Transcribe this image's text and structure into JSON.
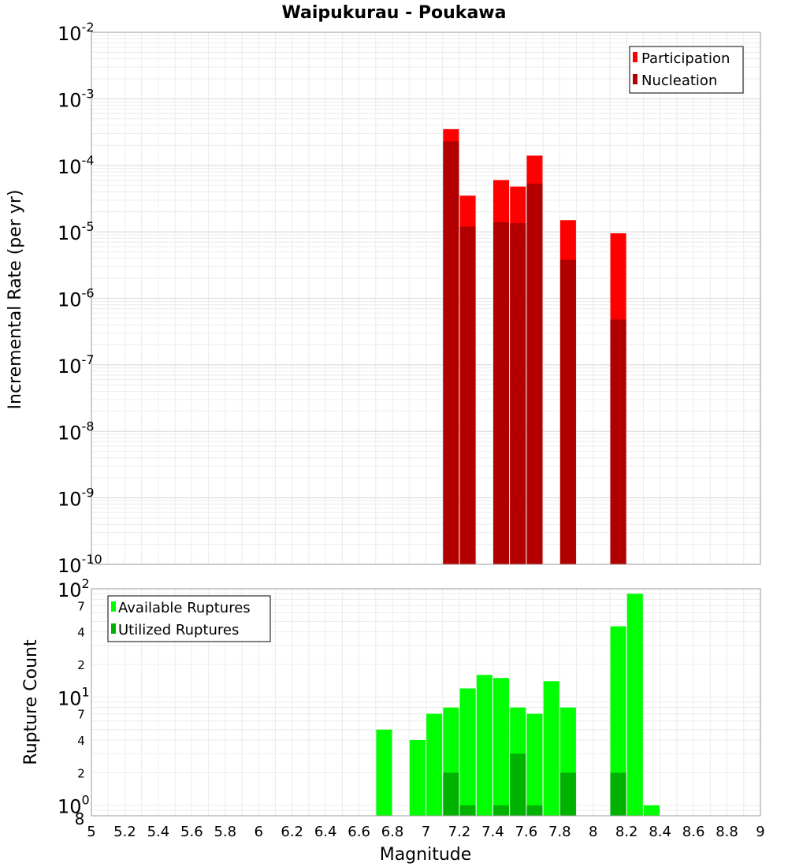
{
  "chart_data": [
    {
      "type": "bar",
      "title": "Waipukurau - Poukawa",
      "ylabel": "Incremental Rate (per yr)",
      "yscale": "log",
      "ylim": [
        1e-10,
        0.01
      ],
      "xlim": [
        5,
        9
      ],
      "legend_position": "top-right",
      "y_ticks": [
        {
          "base": "10",
          "exp": "-2"
        },
        {
          "base": "10",
          "exp": "-3"
        },
        {
          "base": "10",
          "exp": "-4"
        },
        {
          "base": "10",
          "exp": "-5"
        },
        {
          "base": "10",
          "exp": "-6"
        },
        {
          "base": "10",
          "exp": "-7"
        },
        {
          "base": "10",
          "exp": "-8"
        },
        {
          "base": "10",
          "exp": "-9"
        },
        {
          "base": "10",
          "exp": "-10"
        }
      ],
      "series": [
        {
          "name": "Participation",
          "color": "#ff0000",
          "points": [
            {
              "x": 7.15,
              "y": 0.00035
            },
            {
              "x": 7.25,
              "y": 3.5e-05
            },
            {
              "x": 7.45,
              "y": 6e-05
            },
            {
              "x": 7.55,
              "y": 4.8e-05
            },
            {
              "x": 7.65,
              "y": 0.00014
            },
            {
              "x": 7.85,
              "y": 1.5e-05
            },
            {
              "x": 8.15,
              "y": 9.5e-06
            }
          ]
        },
        {
          "name": "Nucleation",
          "color": "#b20000",
          "points": [
            {
              "x": 7.15,
              "y": 0.00023
            },
            {
              "x": 7.25,
              "y": 1.2e-05
            },
            {
              "x": 7.45,
              "y": 1.4e-05
            },
            {
              "x": 7.55,
              "y": 1.35e-05
            },
            {
              "x": 7.65,
              "y": 5.3e-05
            },
            {
              "x": 7.85,
              "y": 3.8e-06
            },
            {
              "x": 8.15,
              "y": 4.8e-07
            }
          ]
        }
      ]
    },
    {
      "type": "bar",
      "ylabel": "Rupture Count",
      "xlabel": "Magnitude",
      "yscale": "log",
      "ylim": [
        0.8,
        100
      ],
      "xlim": [
        5,
        9
      ],
      "legend_position": "top-left",
      "x_ticks": [
        "5",
        "5.2",
        "5.4",
        "5.6",
        "5.8",
        "6",
        "6.2",
        "6.4",
        "6.6",
        "6.8",
        "7",
        "7.2",
        "7.4",
        "7.6",
        "7.8",
        "8",
        "8.2",
        "8.4",
        "8.6",
        "8.8",
        "9"
      ],
      "y_major_ticks": [
        {
          "value": 100,
          "base": "10",
          "exp": "2"
        },
        {
          "value": 10,
          "base": "10",
          "exp": "1"
        },
        {
          "value": 1,
          "base": "10",
          "exp": "0"
        }
      ],
      "y_minor_ticks": [
        {
          "value": 70,
          "label": "7"
        },
        {
          "value": 40,
          "label": "4"
        },
        {
          "value": 20,
          "label": "2"
        },
        {
          "value": 7,
          "label": "7"
        },
        {
          "value": 4,
          "label": "4"
        },
        {
          "value": 2,
          "label": "2"
        },
        {
          "value": 0.8,
          "label": "8"
        }
      ],
      "series": [
        {
          "name": "Available Ruptures",
          "color": "#00ff00",
          "points": [
            {
              "x": 6.75,
              "y": 5
            },
            {
              "x": 6.95,
              "y": 4
            },
            {
              "x": 7.05,
              "y": 7
            },
            {
              "x": 7.15,
              "y": 8
            },
            {
              "x": 7.25,
              "y": 12
            },
            {
              "x": 7.35,
              "y": 16
            },
            {
              "x": 7.45,
              "y": 15
            },
            {
              "x": 7.55,
              "y": 8
            },
            {
              "x": 7.65,
              "y": 7
            },
            {
              "x": 7.75,
              "y": 14
            },
            {
              "x": 7.85,
              "y": 8
            },
            {
              "x": 8.15,
              "y": 45
            },
            {
              "x": 8.25,
              "y": 90
            },
            {
              "x": 8.35,
              "y": 1
            }
          ]
        },
        {
          "name": "Utilized Ruptures",
          "color": "#00b200",
          "points": [
            {
              "x": 7.15,
              "y": 2
            },
            {
              "x": 7.25,
              "y": 1
            },
            {
              "x": 7.45,
              "y": 1
            },
            {
              "x": 7.55,
              "y": 3
            },
            {
              "x": 7.65,
              "y": 1
            },
            {
              "x": 7.85,
              "y": 2
            },
            {
              "x": 8.15,
              "y": 2
            }
          ]
        }
      ]
    }
  ]
}
